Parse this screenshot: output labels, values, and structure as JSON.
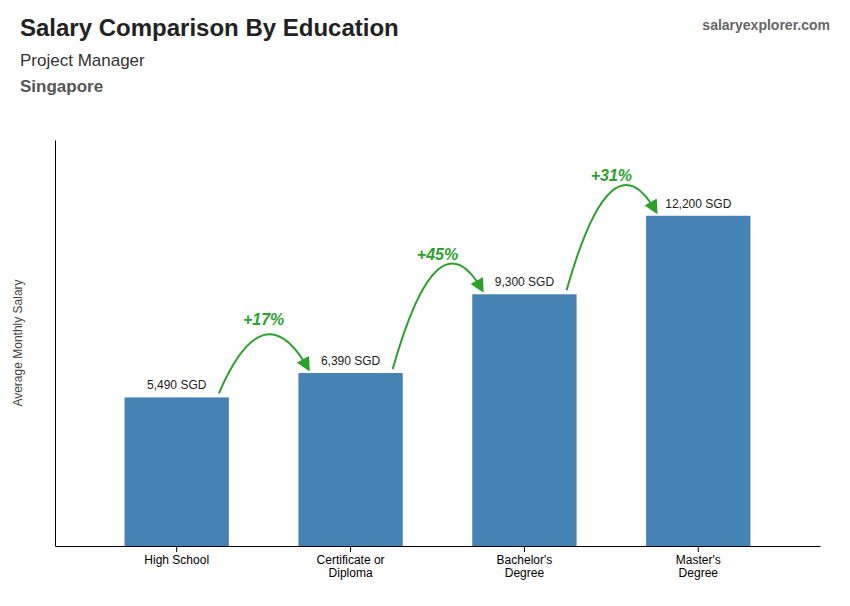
{
  "chart_data": {
    "type": "bar",
    "title": "Salary Comparison By Education",
    "subtitle": "Project Manager",
    "annotations": {
      "location": "Singapore",
      "watermark": [
        "salary",
        "explorer",
        ".com"
      ],
      "changes": [
        "+17%",
        "+45%",
        "+31%"
      ]
    },
    "ylabel": "Average Monthly Salary",
    "categories": [
      "High School",
      "Certificate or\nDiploma",
      "Bachelor's\nDegree",
      "Master's\nDegree"
    ],
    "values": [
      5490,
      6390,
      9300,
      12200
    ],
    "value_labels": [
      "5,490 SGD",
      "6,390 SGD",
      "9,300 SGD",
      "12,200 SGD"
    ],
    "data_labels": true,
    "ylim": [
      0,
      15000
    ],
    "grid": false,
    "tick_labels": "x"
  }
}
